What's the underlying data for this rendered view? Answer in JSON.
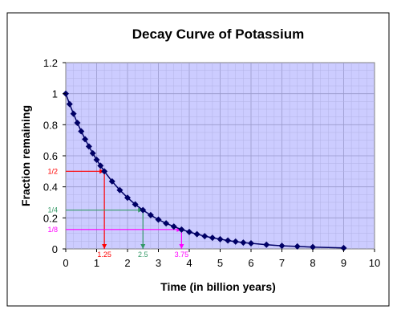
{
  "chart_data": {
    "type": "scatter",
    "title": "Decay Curve of Potassium",
    "xlabel": "Time (in billion years)",
    "ylabel": "Fraction remaining",
    "xlim": [
      0,
      10
    ],
    "ylim": [
      0,
      1.2
    ],
    "x_ticks": [
      "0",
      "1",
      "2",
      "3",
      "4",
      "5",
      "6",
      "7",
      "8",
      "9",
      "10"
    ],
    "y_ticks": [
      "0",
      "0.2",
      "0.4",
      "0.6",
      "0.8",
      "1",
      "1.2"
    ],
    "grid": true,
    "plot_background": "#ccccff",
    "series_color": "#000066",
    "series": [
      {
        "x": [
          0,
          0.125,
          0.25,
          0.375,
          0.5,
          0.625,
          0.75,
          0.875,
          1.0,
          1.125,
          1.25,
          1.5,
          1.75,
          2.0,
          2.25,
          2.5,
          2.75,
          3.0,
          3.25,
          3.5,
          3.75,
          4.0,
          4.25,
          4.5,
          4.75,
          5.0,
          5.25,
          5.5,
          5.75,
          6.0,
          6.5,
          7.0,
          7.5,
          8.0,
          9.0
        ],
        "y": [
          1.0,
          0.933,
          0.871,
          0.812,
          0.758,
          0.707,
          0.66,
          0.616,
          0.574,
          0.536,
          0.5,
          0.435,
          0.379,
          0.33,
          0.287,
          0.25,
          0.218,
          0.189,
          0.165,
          0.144,
          0.125,
          0.109,
          0.095,
          0.082,
          0.072,
          0.063,
          0.054,
          0.047,
          0.041,
          0.036,
          0.027,
          0.02,
          0.016,
          0.012,
          0.006
        ]
      }
    ],
    "annotations": [
      {
        "x_label": "1.25",
        "y_label": "1/2",
        "x": 1.25,
        "y": 0.5,
        "color": "#ff0000"
      },
      {
        "x_label": "2.5",
        "y_label": "1/4",
        "x": 2.5,
        "y": 0.25,
        "color": "#339966"
      },
      {
        "x_label": "3.75",
        "y_label": "1/8",
        "x": 3.75,
        "y": 0.125,
        "color": "#ff00ff"
      }
    ]
  }
}
